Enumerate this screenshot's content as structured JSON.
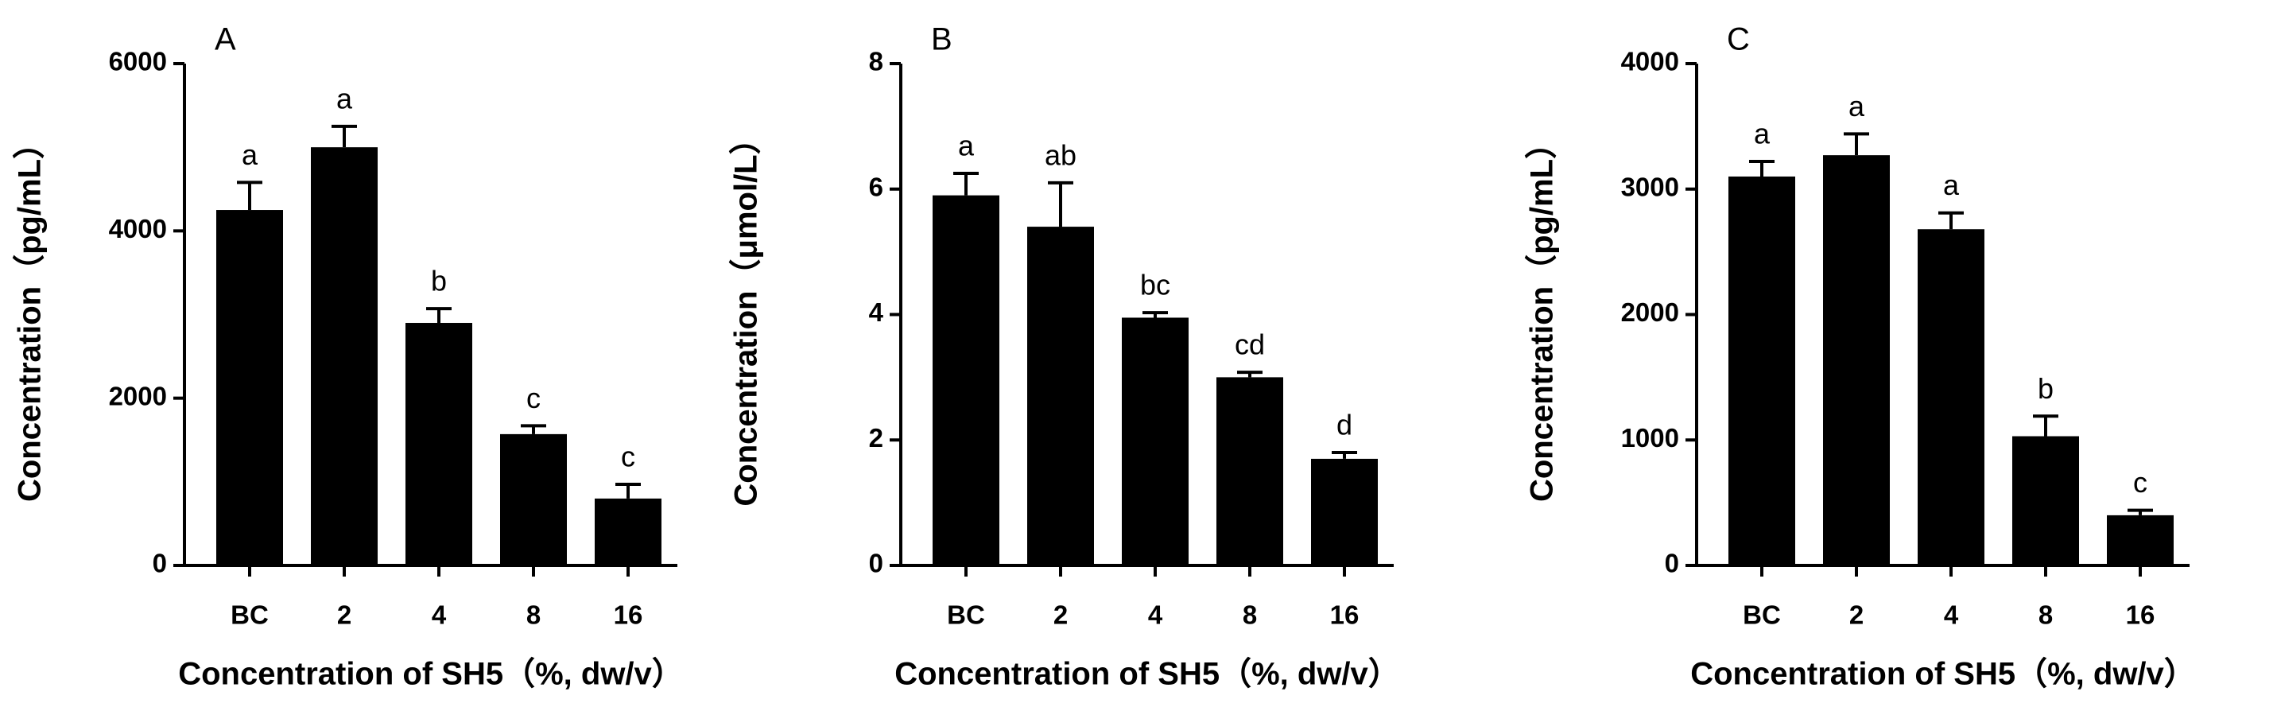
{
  "chart_data": [
    {
      "type": "bar",
      "title": "A",
      "y_label": "Concentration（pg/mL）",
      "x_label": "Concentration of SH5（%, dw/v）",
      "categories": [
        "BC",
        "2",
        "4",
        "8",
        "16"
      ],
      "values": [
        4250,
        5000,
        2900,
        1570,
        800
      ],
      "errors": [
        330,
        250,
        170,
        100,
        170
      ],
      "annotations": [
        "a",
        "a",
        "b",
        "c",
        "c"
      ],
      "ylim": [
        0,
        6000
      ],
      "yticks": [
        0,
        2000,
        4000,
        6000
      ],
      "color": "#000000"
    },
    {
      "type": "bar",
      "title": "B",
      "y_label": "Concentration（μmol/L）",
      "x_label": "Concentration of SH5（%, dw/v）",
      "categories": [
        "BC",
        "2",
        "4",
        "8",
        "16"
      ],
      "values": [
        5.9,
        5.4,
        3.95,
        3.0,
        1.7
      ],
      "errors": [
        0.35,
        0.7,
        0.08,
        0.08,
        0.1
      ],
      "annotations": [
        "a",
        "ab",
        "bc",
        "cd",
        "d"
      ],
      "ylim": [
        0,
        8
      ],
      "yticks": [
        0,
        2,
        4,
        6,
        8
      ],
      "color": "#000000"
    },
    {
      "type": "bar",
      "title": "C",
      "y_label": "Concentration（pg/mL）",
      "x_label": "Concentration of SH5（%, dw/v）",
      "categories": [
        "BC",
        "2",
        "4",
        "8",
        "16"
      ],
      "values": [
        3100,
        3270,
        2680,
        1030,
        400
      ],
      "errors": [
        120,
        170,
        130,
        160,
        40
      ],
      "annotations": [
        "a",
        "a",
        "a",
        "b",
        "c"
      ],
      "ylim": [
        0,
        4000
      ],
      "yticks": [
        0,
        1000,
        2000,
        3000,
        4000
      ],
      "color": "#000000"
    }
  ]
}
